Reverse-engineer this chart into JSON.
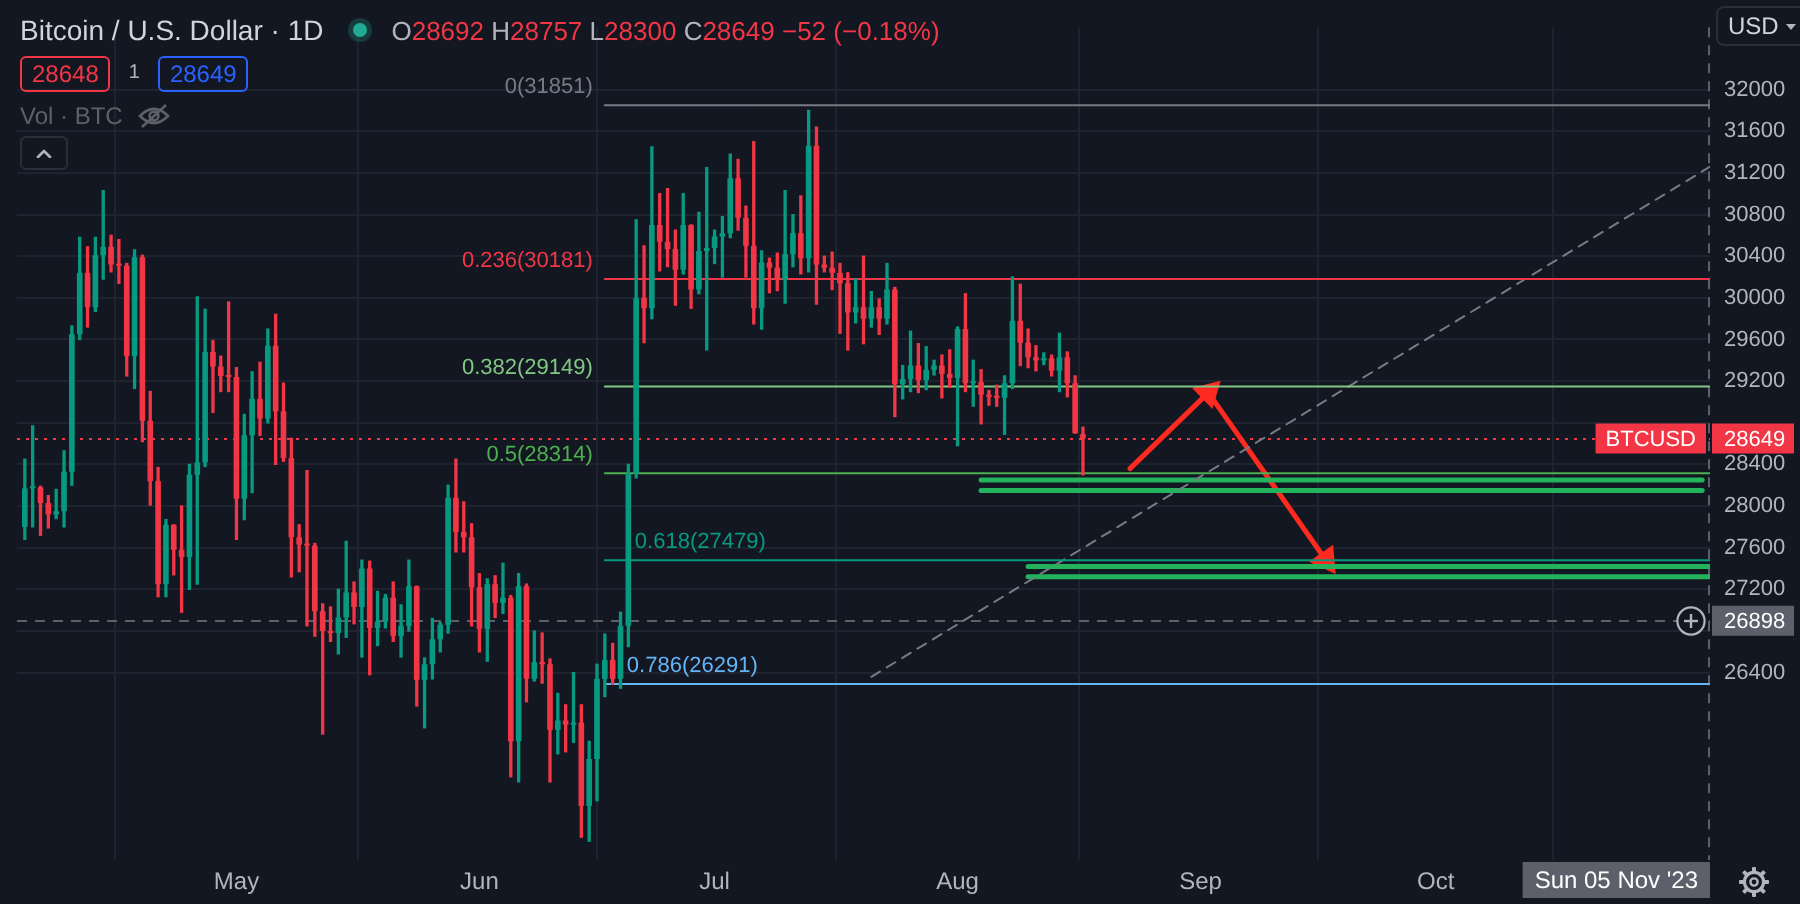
{
  "chart_data": {
    "type": "candlestick",
    "title": "Bitcoin / U.S. Dollar · 1D",
    "subtitle": "O28692 H28757 L28300 C28649 −52 (−0.18%)",
    "ylabel": "USD",
    "annotations": [
      "28648",
      "1",
      "28649",
      "Vol · BTC"
    ],
    "x": [
      "2023-04-04",
      "2023-04-05",
      "2023-04-06",
      "2023-04-07",
      "2023-04-08",
      "2023-04-09",
      "2023-04-10",
      "2023-04-11",
      "2023-04-12",
      "2023-04-13",
      "2023-04-14",
      "2023-04-15",
      "2023-04-16",
      "2023-04-17",
      "2023-04-18",
      "2023-04-19",
      "2023-04-20",
      "2023-04-21",
      "2023-04-22",
      "2023-04-23",
      "2023-04-24",
      "2023-04-25",
      "2023-04-26",
      "2023-04-27",
      "2023-04-28",
      "2023-04-29",
      "2023-04-30",
      "2023-05-01",
      "2023-05-02",
      "2023-05-03",
      "2023-05-04",
      "2023-05-05",
      "2023-05-06",
      "2023-05-07",
      "2023-05-08",
      "2023-05-09",
      "2023-05-10",
      "2023-05-11",
      "2023-05-12",
      "2023-05-13",
      "2023-05-14",
      "2023-05-15",
      "2023-05-16",
      "2023-05-17",
      "2023-05-18",
      "2023-05-19",
      "2023-05-20",
      "2023-05-21",
      "2023-05-22",
      "2023-05-23",
      "2023-05-24",
      "2023-05-25",
      "2023-05-26",
      "2023-05-27",
      "2023-05-28",
      "2023-05-29",
      "2023-05-30",
      "2023-05-31",
      "2023-06-01",
      "2023-06-02",
      "2023-06-03",
      "2023-06-04",
      "2023-06-05",
      "2023-06-06",
      "2023-06-07",
      "2023-06-08",
      "2023-06-09",
      "2023-06-10",
      "2023-06-11",
      "2023-06-12",
      "2023-06-13",
      "2023-06-14",
      "2023-06-15",
      "2023-06-16",
      "2023-06-17",
      "2023-06-18",
      "2023-06-19",
      "2023-06-20",
      "2023-06-21",
      "2023-06-22",
      "2023-06-23",
      "2023-06-24",
      "2023-06-25",
      "2023-06-26",
      "2023-06-27",
      "2023-06-28",
      "2023-06-29",
      "2023-06-30",
      "2023-07-01",
      "2023-07-02",
      "2023-07-03",
      "2023-07-04",
      "2023-07-05",
      "2023-07-06",
      "2023-07-07",
      "2023-07-08",
      "2023-07-09",
      "2023-07-10",
      "2023-07-11",
      "2023-07-12",
      "2023-07-13",
      "2023-07-14",
      "2023-07-15",
      "2023-07-16",
      "2023-07-17",
      "2023-07-18",
      "2023-07-19",
      "2023-07-20",
      "2023-07-21",
      "2023-07-22",
      "2023-07-23",
      "2023-07-24",
      "2023-07-25",
      "2023-07-26",
      "2023-07-27",
      "2023-07-28",
      "2023-07-29",
      "2023-07-30",
      "2023-07-31",
      "2023-08-01",
      "2023-08-02",
      "2023-08-03",
      "2023-08-04",
      "2023-08-05",
      "2023-08-06",
      "2023-08-07",
      "2023-08-08",
      "2023-08-09",
      "2023-08-10",
      "2023-08-11",
      "2023-08-12",
      "2023-08-13",
      "2023-08-14",
      "2023-08-15",
      "2023-08-16",
      "2023-08-17"
    ],
    "ohlc": [
      [
        27800,
        28450,
        27680,
        28170
      ],
      [
        28170,
        28770,
        27800,
        28180
      ],
      [
        28180,
        28190,
        27720,
        28030
      ],
      [
        28030,
        28100,
        27790,
        27920
      ],
      [
        27920,
        28160,
        27880,
        27950
      ],
      [
        27950,
        28530,
        27800,
        28330
      ],
      [
        28330,
        29730,
        28200,
        29650
      ],
      [
        29650,
        30580,
        29600,
        30240
      ],
      [
        30240,
        30490,
        29720,
        29910
      ],
      [
        29910,
        30580,
        29870,
        30410
      ],
      [
        30410,
        31030,
        30180,
        30490
      ],
      [
        30490,
        30600,
        30250,
        30320
      ],
      [
        30320,
        30560,
        30140,
        30310
      ],
      [
        30310,
        30330,
        29250,
        29440
      ],
      [
        29440,
        30460,
        29130,
        30390
      ],
      [
        30390,
        30410,
        28620,
        28820
      ],
      [
        28820,
        29100,
        28010,
        28240
      ],
      [
        28240,
        28370,
        27130,
        27250
      ],
      [
        27250,
        27870,
        27130,
        27820
      ],
      [
        27820,
        27820,
        27340,
        27580
      ],
      [
        27580,
        28000,
        26980,
        27510
      ],
      [
        27510,
        28400,
        27200,
        28300
      ],
      [
        28300,
        30010,
        27250,
        28420
      ],
      [
        28420,
        29890,
        28380,
        29480
      ],
      [
        29480,
        29590,
        28900,
        29340
      ],
      [
        29340,
        29440,
        29100,
        29250
      ],
      [
        29250,
        29960,
        29100,
        29240
      ],
      [
        29240,
        29330,
        27680,
        28070
      ],
      [
        28070,
        28880,
        27870,
        28680
      ],
      [
        28680,
        29290,
        28130,
        29030
      ],
      [
        29030,
        29380,
        28680,
        28840
      ],
      [
        28840,
        29700,
        28800,
        29540
      ],
      [
        29540,
        29840,
        28400,
        28910
      ],
      [
        28910,
        29180,
        28430,
        28460
      ],
      [
        28460,
        28650,
        27320,
        27700
      ],
      [
        27700,
        27820,
        27370,
        27630
      ],
      [
        27630,
        28340,
        26850,
        27620
      ],
      [
        27620,
        27640,
        26750,
        26990
      ],
      [
        26990,
        27060,
        25810,
        26800
      ],
      [
        26800,
        27030,
        26700,
        26780
      ],
      [
        26780,
        27200,
        26580,
        26930
      ],
      [
        26930,
        27660,
        26740,
        27170
      ],
      [
        27170,
        27270,
        26870,
        27030
      ],
      [
        27030,
        27480,
        26550,
        27400
      ],
      [
        27400,
        27470,
        26380,
        26830
      ],
      [
        26830,
        27180,
        26660,
        26890
      ],
      [
        26890,
        27150,
        26830,
        27120
      ],
      [
        27120,
        27270,
        26700,
        26750
      ],
      [
        26750,
        27050,
        26550,
        26850
      ],
      [
        26850,
        27480,
        26800,
        27230
      ],
      [
        27230,
        27230,
        26080,
        26330
      ],
      [
        26330,
        26540,
        25870,
        26480
      ],
      [
        26480,
        26920,
        26340,
        26720
      ],
      [
        26720,
        26880,
        26600,
        26860
      ],
      [
        26860,
        28200,
        26780,
        28080
      ],
      [
        28080,
        28450,
        27560,
        27750
      ],
      [
        27750,
        28040,
        27560,
        27700
      ],
      [
        27700,
        27830,
        26850,
        27220
      ],
      [
        27220,
        27350,
        26600,
        26820
      ],
      [
        26820,
        27300,
        26510,
        27250
      ],
      [
        27250,
        27330,
        26930,
        27070
      ],
      [
        27070,
        27450,
        26970,
        27120
      ],
      [
        27120,
        27140,
        25400,
        25740
      ],
      [
        25740,
        27350,
        25350,
        27230
      ],
      [
        27230,
        27250,
        26120,
        26340
      ],
      [
        26340,
        26800,
        26320,
        26500
      ],
      [
        26500,
        26780,
        26300,
        26480
      ],
      [
        26480,
        26530,
        25350,
        25850
      ],
      [
        25850,
        26200,
        25620,
        25940
      ],
      [
        25940,
        26090,
        25640,
        25900
      ],
      [
        25900,
        26400,
        25730,
        25920
      ],
      [
        25920,
        26090,
        24820,
        25120
      ],
      [
        25120,
        25740,
        24780,
        25570
      ],
      [
        25570,
        26480,
        25170,
        26340
      ],
      [
        26340,
        26770,
        26170,
        26520
      ],
      [
        26520,
        26680,
        26290,
        26340
      ],
      [
        26340,
        26980,
        26250,
        26850
      ],
      [
        26850,
        28400,
        26650,
        28310
      ],
      [
        28310,
        30750,
        28270,
        30000
      ],
      [
        30000,
        30500,
        29570,
        29900
      ],
      [
        29900,
        31450,
        29800,
        30700
      ],
      [
        30700,
        31000,
        30260,
        30540
      ],
      [
        30540,
        31050,
        30300,
        30470
      ],
      [
        30470,
        30650,
        29930,
        30270
      ],
      [
        30270,
        31000,
        30230,
        30700
      ],
      [
        30700,
        30700,
        29900,
        30080
      ],
      [
        30080,
        30820,
        30040,
        30450
      ],
      [
        30450,
        31250,
        29500,
        30480
      ],
      [
        30480,
        30650,
        30330,
        30590
      ],
      [
        30590,
        30780,
        30200,
        30620
      ],
      [
        30620,
        31380,
        30580,
        31150
      ],
      [
        31150,
        31330,
        30650,
        30770
      ],
      [
        30770,
        30880,
        30200,
        30500
      ],
      [
        30500,
        31500,
        29750,
        29900
      ],
      [
        29900,
        30450,
        29700,
        30340
      ],
      [
        30340,
        30380,
        30050,
        30290
      ],
      [
        30290,
        30430,
        30070,
        30170
      ],
      [
        30170,
        31030,
        29950,
        30420
      ],
      [
        30420,
        30800,
        30300,
        30620
      ],
      [
        30620,
        30980,
        30230,
        30380
      ],
      [
        30380,
        31800,
        30250,
        31460
      ],
      [
        31460,
        31640,
        29940,
        30320
      ],
      [
        30320,
        30400,
        30250,
        30290
      ],
      [
        30290,
        30440,
        30080,
        30240
      ],
      [
        30240,
        30330,
        29660,
        30140
      ],
      [
        30140,
        30240,
        29500,
        29860
      ],
      [
        29860,
        30180,
        29760,
        29910
      ],
      [
        29910,
        30400,
        29560,
        29800
      ],
      [
        29800,
        30060,
        29720,
        29910
      ],
      [
        29910,
        29990,
        29650,
        29800
      ],
      [
        29800,
        30330,
        29750,
        30080
      ],
      [
        30080,
        30100,
        28860,
        29170
      ],
      [
        29170,
        29350,
        29030,
        29220
      ],
      [
        29220,
        29680,
        29100,
        29350
      ],
      [
        29350,
        29560,
        29090,
        29210
      ],
      [
        29210,
        29530,
        29120,
        29310
      ],
      [
        29310,
        29400,
        29260,
        29350
      ],
      [
        29350,
        29450,
        29040,
        29270
      ],
      [
        29270,
        29500,
        29140,
        29230
      ],
      [
        29230,
        29720,
        28580,
        29700
      ],
      [
        29700,
        30040,
        29100,
        29180
      ],
      [
        29180,
        29400,
        28960,
        29190
      ],
      [
        29190,
        29310,
        28790,
        29070
      ],
      [
        29070,
        29110,
        28970,
        29050
      ],
      [
        29050,
        29160,
        28960,
        29040
      ],
      [
        29040,
        29250,
        28690,
        29180
      ],
      [
        29180,
        30200,
        29130,
        29780
      ],
      [
        29780,
        30130,
        29350,
        29570
      ],
      [
        29570,
        29700,
        29330,
        29430
      ],
      [
        29430,
        29540,
        29300,
        29400
      ],
      [
        29400,
        29470,
        29360,
        29420
      ],
      [
        29420,
        29450,
        29250,
        29300
      ],
      [
        29300,
        29660,
        29100,
        29430
      ],
      [
        29430,
        29480,
        29050,
        29180
      ],
      [
        29180,
        29250,
        28700,
        28700
      ],
      [
        28692,
        28757,
        28300,
        28649
      ]
    ],
    "colors": [
      "#089981",
      "#089981",
      "#f23645",
      "#f23645",
      "#089981",
      "#089981",
      "#089981",
      "#089981",
      "#f23645",
      "#089981",
      "#089981",
      "#f23645",
      "#f23645",
      "#f23645",
      "#089981",
      "#f23645",
      "#f23645",
      "#f23645",
      "#089981",
      "#f23645",
      "#f23645",
      "#089981",
      "#089981",
      "#089981",
      "#f23645",
      "#f23645",
      "#f23645",
      "#f23645",
      "#089981",
      "#089981",
      "#f23645",
      "#089981",
      "#f23645",
      "#f23645",
      "#f23645",
      "#f23645",
      "#f23645",
      "#f23645",
      "#f23645",
      "#f23645",
      "#089981",
      "#089981",
      "#f23645",
      "#089981",
      "#f23645",
      "#089981",
      "#089981",
      "#f23645",
      "#089981",
      "#089981",
      "#f23645",
      "#089981",
      "#089981",
      "#089981",
      "#089981",
      "#f23645",
      "#f23645",
      "#f23645",
      "#f23645",
      "#089981",
      "#f23645",
      "#089981",
      "#f23645",
      "#089981",
      "#f23645",
      "#089981",
      "#f23645",
      "#f23645",
      "#089981",
      "#f23645",
      "#089981",
      "#f23645",
      "#089981",
      "#089981",
      "#089981",
      "#f23645",
      "#089981",
      "#089981",
      "#089981",
      "#f23645",
      "#089981",
      "#f23645",
      "#f23645",
      "#f23645",
      "#089981",
      "#f23645",
      "#089981",
      "#089981",
      "#089981",
      "#089981",
      "#089981",
      "#f23645",
      "#f23645",
      "#f23645",
      "#089981",
      "#f23645",
      "#f23645",
      "#089981",
      "#089981",
      "#f23645",
      "#089981",
      "#f23645",
      "#f23645",
      "#f23645",
      "#f23645",
      "#f23645",
      "#089981",
      "#f23645",
      "#089981",
      "#f23645",
      "#089981",
      "#f23645",
      "#089981",
      "#089981",
      "#f23645",
      "#089981",
      "#089981",
      "#f23645",
      "#f23645",
      "#089981",
      "#f23645",
      "#089981",
      "#f23645",
      "#f23645",
      "#f23645",
      "#089981",
      "#089981",
      "#f23645",
      "#f23645",
      "#f23645",
      "#089981",
      "#f23645",
      "#089981",
      "#f23645",
      "#f23645",
      "#f23645"
    ],
    "series": [
      {
        "type": "line",
        "name": "0(31851)",
        "color": "#787b86",
        "x": [
          "2023-06-17",
          "2023-11-05"
        ],
        "values": [
          31851,
          31851
        ]
      },
      {
        "type": "line",
        "name": "0.236(30181)",
        "color": "#f23645",
        "x": [
          "2023-06-17",
          "2023-11-05"
        ],
        "values": [
          30181,
          30181
        ]
      },
      {
        "type": "line",
        "name": "0.382(29149)",
        "color": "#81c784",
        "x": [
          "2023-06-17",
          "2023-11-05"
        ],
        "values": [
          29149,
          29149
        ]
      },
      {
        "type": "line",
        "name": "0.5(28314)",
        "color": "#4caf50",
        "x": [
          "2023-06-17",
          "2023-11-05"
        ],
        "values": [
          28314,
          28314
        ]
      },
      {
        "type": "line",
        "name": "0.618(27479)",
        "color": "#089981",
        "x": [
          "2023-06-17",
          "2023-11-05"
        ],
        "values": [
          27479,
          27479
        ]
      },
      {
        "type": "line",
        "name": "0.786(26291)",
        "color": "#64b5f6",
        "x": [
          "2023-06-17",
          "2023-11-05"
        ],
        "values": [
          26291,
          26291
        ]
      },
      {
        "type": "line",
        "color": "#787b86",
        "line_style": "dashed",
        "x": [
          "2023-07-21",
          "2023-11-05"
        ],
        "values": [
          26360,
          31260
        ]
      },
      {
        "type": "line",
        "color": "#22b35c",
        "x": [
          "2023-08-04",
          "2023-11-04"
        ],
        "values": [
          28250,
          28250
        ]
      },
      {
        "type": "line",
        "color": "#22b35c",
        "x": [
          "2023-08-04",
          "2023-11-04"
        ],
        "values": [
          28150,
          28150
        ]
      },
      {
        "type": "line",
        "color": "#22b35c",
        "x": [
          "2023-08-10",
          "2023-11-05"
        ],
        "values": [
          27420,
          27420
        ]
      },
      {
        "type": "line",
        "color": "#22b35c",
        "x": [
          "2023-08-10",
          "2023-11-05"
        ],
        "values": [
          27320,
          27320
        ]
      },
      {
        "type": "line",
        "color": "#ff2a1f",
        "marker": "triangle",
        "x": [
          "2023-08-23",
          "2023-09-02",
          "2023-09-17"
        ],
        "values": [
          28360,
          29090,
          27480
        ]
      }
    ],
    "ref_lines": [
      {
        "axis": "y",
        "value": 28649,
        "label": "BTCUSD 28649",
        "color": "#f23645",
        "line_style": "dotted"
      },
      {
        "axis": "y",
        "value": 26898,
        "label": "26898",
        "color": "#5d606b",
        "line_style": "dashed"
      },
      {
        "axis": "x",
        "value": "2023-11-05",
        "label": "Sun 05 Nov '23",
        "color": "#5d606b",
        "line_style": "dashed"
      }
    ],
    "xlim": [
      "2023-04-03",
      "2023-11-05"
    ],
    "xticks": [
      {
        "value": "2023-05-01",
        "label": "May"
      },
      {
        "value": "2023-06-01",
        "label": "Jun"
      },
      {
        "value": "2023-07-01",
        "label": "Jul"
      },
      {
        "value": "2023-08-01",
        "label": "Aug"
      },
      {
        "value": "2023-09-01",
        "label": "Sep"
      },
      {
        "value": "2023-10-01",
        "label": "Oct"
      }
    ],
    "ylim": [
      24600,
      32600
    ],
    "yticks": [
      26400,
      {
        "value": 26800,
        "label": null
      },
      27200,
      27600,
      28000,
      28400,
      {
        "value": 28800,
        "label": null
      },
      29200,
      29600,
      30000,
      30400,
      30800,
      31200,
      31600,
      32000
    ],
    "grid": true
  }
}
